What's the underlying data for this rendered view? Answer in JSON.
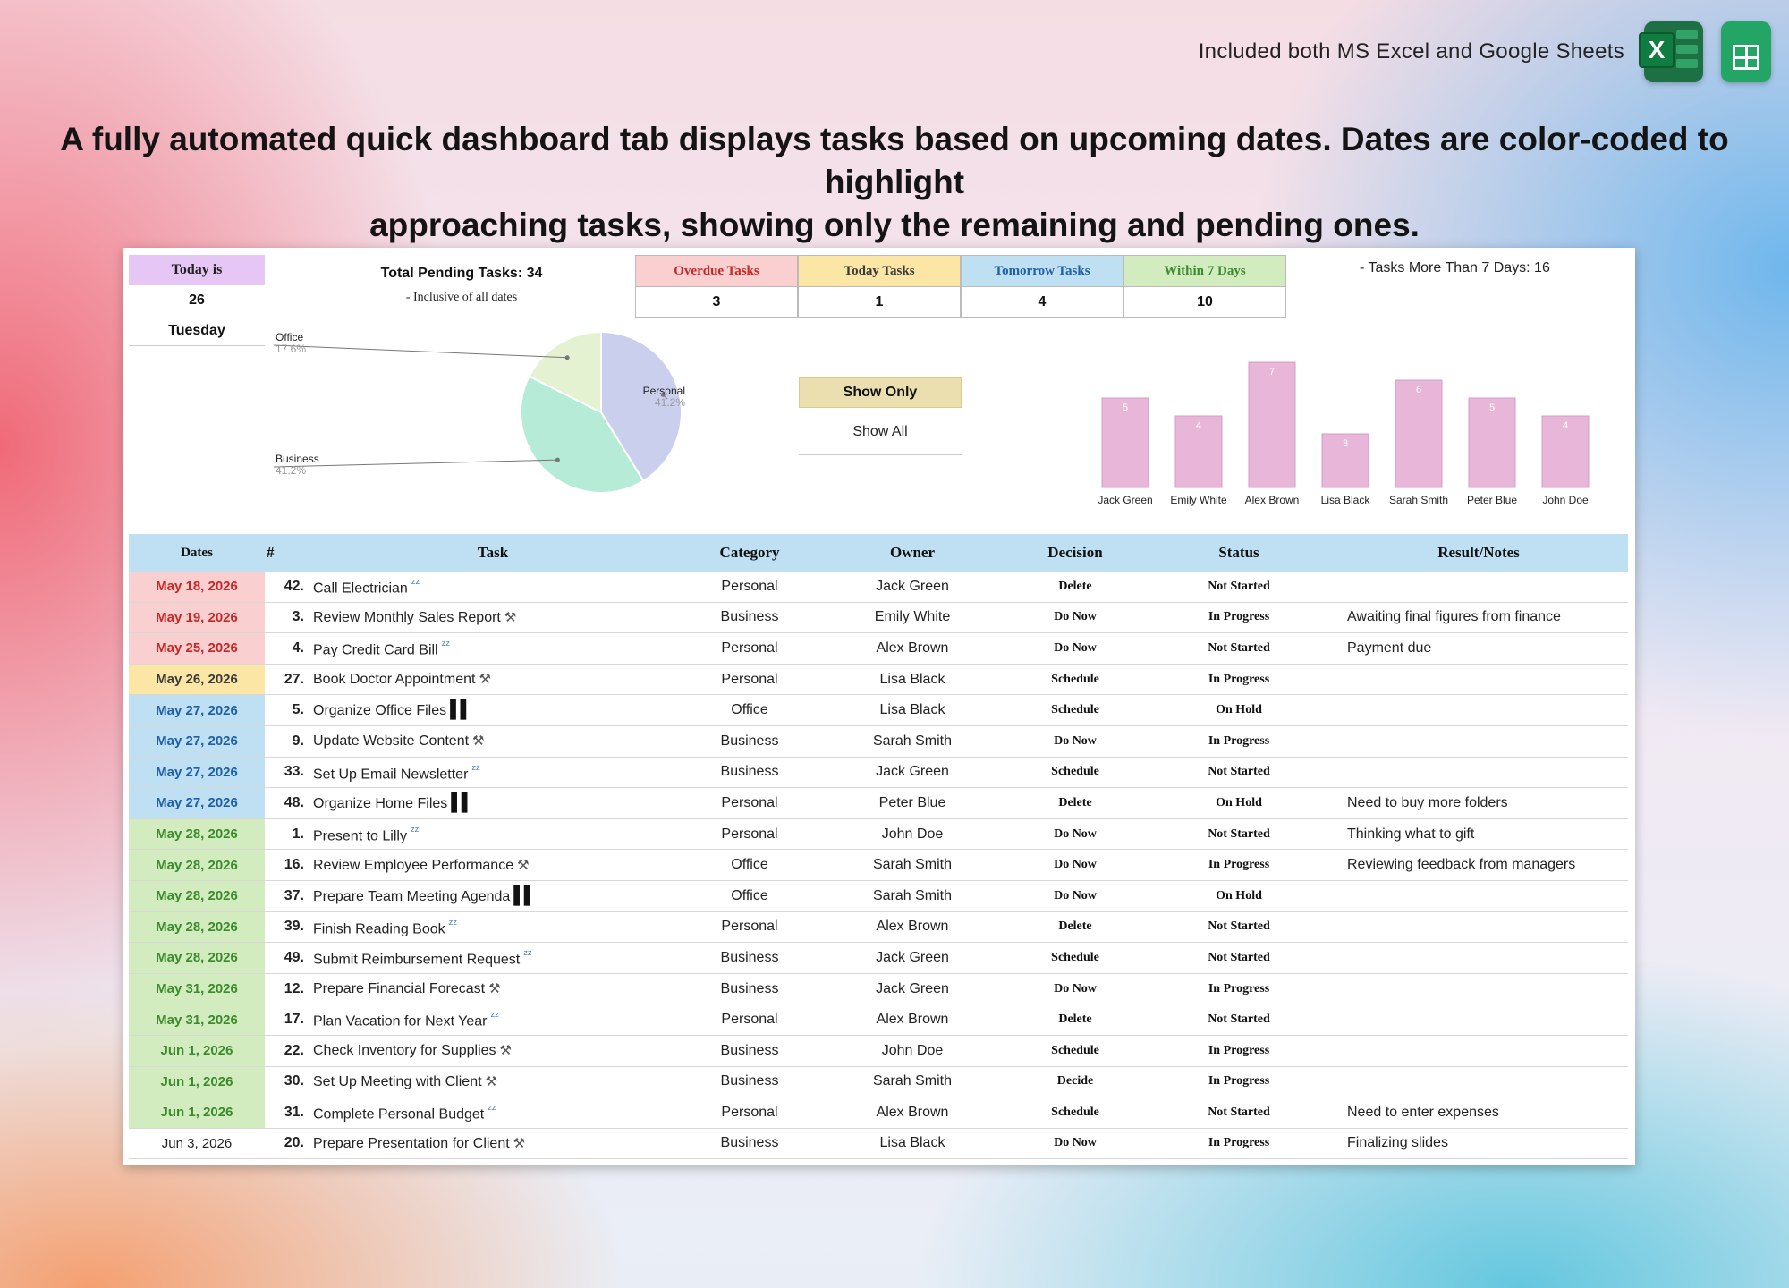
{
  "banner": {
    "top_note": "Included both MS Excel and Google Sheets",
    "excel_icon": "excel-logo-icon",
    "sheets_icon": "google-sheets-logo-icon",
    "headline_line1": "A fully automated quick dashboard tab displays tasks based on upcoming dates. Dates are color-coded to highlight",
    "headline_line2": "approaching tasks, showing only the remaining and pending ones."
  },
  "today": {
    "label": "Today is",
    "day_number": "26",
    "weekday": "Tuesday"
  },
  "pending": {
    "title": "Total Pending Tasks: 34",
    "subtitle": "- Inclusive of all dates"
  },
  "kpis": [
    {
      "label": "Overdue Tasks",
      "value": "3",
      "bg": "#f9cfcf",
      "color": "#c62828"
    },
    {
      "label": "Today Tasks",
      "value": "1",
      "bg": "#fbe6a6",
      "color": "#3a3a3a"
    },
    {
      "label": "Tomorrow Tasks",
      "value": "4",
      "bg": "#bfe0f3",
      "color": "#1e5fa8"
    },
    {
      "label": "Within 7 Days",
      "value": "10",
      "bg": "#d2ecc0",
      "color": "#3b8b2c"
    }
  ],
  "more_tasks": "- Tasks More Than 7 Days: 16",
  "filter": {
    "show_only": "Show Only",
    "show_all": "Show All"
  },
  "chart_data": [
    {
      "type": "pie",
      "categories": [
        "Personal",
        "Business",
        "Office"
      ],
      "values": [
        41.2,
        41.2,
        17.6
      ],
      "labels": [
        "41.2%",
        "41.2%",
        "17.6%"
      ],
      "colors": [
        "#c9cfec",
        "#b6ebd8",
        "#e5f2d1"
      ]
    },
    {
      "type": "bar",
      "categories": [
        "Jack Green",
        "Emily White",
        "Alex Brown",
        "Lisa Black",
        "Sarah Smith",
        "Peter Blue",
        "John Doe"
      ],
      "values": [
        5,
        4,
        7,
        3,
        6,
        5,
        4
      ],
      "color": "#e8b6d8",
      "ylim": [
        0,
        7
      ]
    }
  ],
  "table": {
    "headers": {
      "dates": "Dates",
      "num": "#",
      "task": "Task",
      "category": "Category",
      "owner": "Owner",
      "decision": "Decision",
      "status": "Status",
      "notes": "Result/Notes"
    },
    "rows": [
      {
        "date": "May 18, 2026",
        "bucket": "overdue",
        "num": "42.",
        "task": "Call Electrician",
        "icon": "sleep",
        "category": "Personal",
        "owner": "Jack Green",
        "decision": "Delete",
        "status": "Not Started",
        "notes": ""
      },
      {
        "date": "May 19, 2026",
        "bucket": "overdue",
        "num": "3.",
        "task": "Review Monthly Sales Report",
        "icon": "tools",
        "category": "Business",
        "owner": "Emily White",
        "decision": "Do Now",
        "status": "In Progress",
        "notes": "Awaiting final figures from finance"
      },
      {
        "date": "May 25, 2026",
        "bucket": "overdue",
        "num": "4.",
        "task": "Pay Credit Card Bill",
        "icon": "sleep",
        "category": "Personal",
        "owner": "Alex Brown",
        "decision": "Do Now",
        "status": "Not Started",
        "notes": "Payment due"
      },
      {
        "date": "May 26, 2026",
        "bucket": "today",
        "num": "27.",
        "task": "Book Doctor Appointment",
        "icon": "tools",
        "category": "Personal",
        "owner": "Lisa Black",
        "decision": "Schedule",
        "status": "In Progress",
        "notes": ""
      },
      {
        "date": "May 27, 2026",
        "bucket": "tomorrow",
        "num": "5.",
        "task": "Organize Office Files",
        "icon": "pause",
        "category": "Office",
        "owner": "Lisa Black",
        "decision": "Schedule",
        "status": "On Hold",
        "notes": ""
      },
      {
        "date": "May 27, 2026",
        "bucket": "tomorrow",
        "num": "9.",
        "task": "Update Website Content",
        "icon": "tools",
        "category": "Business",
        "owner": "Sarah Smith",
        "decision": "Do Now",
        "status": "In Progress",
        "notes": ""
      },
      {
        "date": "May 27, 2026",
        "bucket": "tomorrow",
        "num": "33.",
        "task": "Set Up Email Newsletter",
        "icon": "sleep",
        "category": "Business",
        "owner": "Jack Green",
        "decision": "Schedule",
        "status": "Not Started",
        "notes": ""
      },
      {
        "date": "May 27, 2026",
        "bucket": "tomorrow",
        "num": "48.",
        "task": "Organize Home Files",
        "icon": "pause",
        "category": "Personal",
        "owner": "Peter Blue",
        "decision": "Delete",
        "status": "On Hold",
        "notes": "Need to buy more folders"
      },
      {
        "date": "May 28, 2026",
        "bucket": "week",
        "num": "1.",
        "task": "Present to Lilly",
        "icon": "sleep",
        "category": "Personal",
        "owner": "John Doe",
        "decision": "Do Now",
        "status": "Not Started",
        "notes": "Thinking what to gift"
      },
      {
        "date": "May 28, 2026",
        "bucket": "week",
        "num": "16.",
        "task": "Review Employee Performance",
        "icon": "tools",
        "category": "Office",
        "owner": "Sarah Smith",
        "decision": "Do Now",
        "status": "In Progress",
        "notes": "Reviewing feedback from managers"
      },
      {
        "date": "May 28, 2026",
        "bucket": "week",
        "num": "37.",
        "task": "Prepare Team Meeting Agenda",
        "icon": "pause",
        "category": "Office",
        "owner": "Sarah Smith",
        "decision": "Do Now",
        "status": "On Hold",
        "notes": ""
      },
      {
        "date": "May 28, 2026",
        "bucket": "week",
        "num": "39.",
        "task": "Finish Reading Book",
        "icon": "sleep",
        "category": "Personal",
        "owner": "Alex Brown",
        "decision": "Delete",
        "status": "Not Started",
        "notes": ""
      },
      {
        "date": "May 28, 2026",
        "bucket": "week",
        "num": "49.",
        "task": "Submit Reimbursement Request",
        "icon": "sleep",
        "category": "Business",
        "owner": "Jack Green",
        "decision": "Schedule",
        "status": "Not Started",
        "notes": ""
      },
      {
        "date": "May 31, 2026",
        "bucket": "week",
        "num": "12.",
        "task": "Prepare Financial Forecast",
        "icon": "tools",
        "category": "Business",
        "owner": "Jack Green",
        "decision": "Do Now",
        "status": "In Progress",
        "notes": ""
      },
      {
        "date": "May 31, 2026",
        "bucket": "week",
        "num": "17.",
        "task": "Plan Vacation for Next Year",
        "icon": "sleep",
        "category": "Personal",
        "owner": "Alex Brown",
        "decision": "Delete",
        "status": "Not Started",
        "notes": ""
      },
      {
        "date": "Jun 1, 2026",
        "bucket": "week",
        "num": "22.",
        "task": "Check Inventory for Supplies",
        "icon": "tools",
        "category": "Business",
        "owner": "John Doe",
        "decision": "Schedule",
        "status": "In Progress",
        "notes": ""
      },
      {
        "date": "Jun 1, 2026",
        "bucket": "week",
        "num": "30.",
        "task": "Set Up Meeting with Client",
        "icon": "tools",
        "category": "Business",
        "owner": "Sarah Smith",
        "decision": "Decide",
        "status": "In Progress",
        "notes": ""
      },
      {
        "date": "Jun 1, 2026",
        "bucket": "week",
        "num": "31.",
        "task": "Complete Personal Budget",
        "icon": "sleep",
        "category": "Personal",
        "owner": "Alex Brown",
        "decision": "Schedule",
        "status": "Not Started",
        "notes": "Need to enter expenses"
      },
      {
        "date": "Jun 3, 2026",
        "bucket": "later",
        "num": "20.",
        "task": "Prepare Presentation for Client",
        "icon": "tools",
        "category": "Business",
        "owner": "Lisa Black",
        "decision": "Do Now",
        "status": "In Progress",
        "notes": "Finalizing slides"
      }
    ]
  },
  "date_colors": {
    "overdue": {
      "bg": "#f9cfcf",
      "fg": "#c62828"
    },
    "today": {
      "bg": "#fbe6a6",
      "fg": "#3a3a3a"
    },
    "tomorrow": {
      "bg": "#bfe0f3",
      "fg": "#1e5fa8"
    },
    "week": {
      "bg": "#d2ecc0",
      "fg": "#3b8b2c"
    },
    "later": {
      "bg": "#ffffff",
      "fg": "#222222"
    }
  }
}
